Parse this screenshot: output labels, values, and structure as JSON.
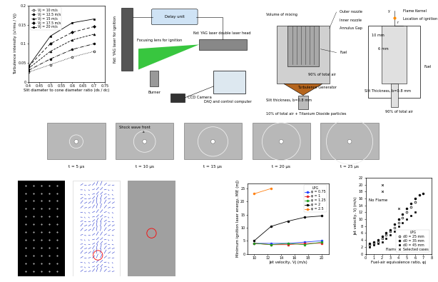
{
  "chart_data": [
    {
      "type": "line",
      "x_label": "Slit diameter to cone diameter ratio (ds / dc)",
      "y_label": "Turbulence intensity (u'rms / Vj)",
      "x": [
        0.4,
        0.5,
        0.6,
        0.7
      ],
      "series": [
        {
          "name": "Vj = 10 m/s",
          "color": "#000000",
          "marker": "open_circle",
          "line_style": "dotted",
          "values": [
            0.025,
            0.045,
            0.065,
            0.08
          ]
        },
        {
          "name": "Vj = 12.5 m/s",
          "color": "#000000",
          "marker": "circle",
          "line_style": "dashdot",
          "values": [
            0.03,
            0.06,
            0.085,
            0.1
          ]
        },
        {
          "name": "Vj = 15 m/s",
          "color": "#000000",
          "marker": "triangle",
          "line_style": "dashed",
          "values": [
            0.035,
            0.08,
            0.11,
            0.125
          ]
        },
        {
          "name": "Vj = 17.5 m/s",
          "color": "#000000",
          "marker": "diamond",
          "line_style": "loosely_dashed",
          "values": [
            0.04,
            0.1,
            0.13,
            0.145
          ]
        },
        {
          "name": "Vj = 20 m/s",
          "color": "#000000",
          "marker": "square",
          "line_style": "solid",
          "values": [
            0.04,
            0.12,
            0.155,
            0.165
          ]
        }
      ],
      "xlim": [
        0.4,
        0.75
      ],
      "ylim": [
        0,
        0.2
      ],
      "xticks": [
        0.4,
        0.45,
        0.5,
        0.55,
        0.6,
        0.65,
        0.7,
        0.75
      ],
      "yticks": [
        0,
        0.05,
        0.1,
        0.15,
        0.2
      ],
      "legend": "upper left"
    },
    {
      "type": "line",
      "x_label": "Jet velocity, Vj (m/s)",
      "y_label": "Minimum ignition laser energy, MIE (mJ)",
      "legend_title": "LPG",
      "x": [
        10,
        12.5,
        15,
        17.5,
        20
      ],
      "series": [
        {
          "name": "φ = 0.75",
          "color": "#1f3fff",
          "marker": "circle",
          "line_style": "solid",
          "values": [
            4,
            4,
            4,
            4.5,
            5
          ]
        },
        {
          "name": "φ = 1",
          "color": "#e02020",
          "marker": "circle",
          "line_style": "solid",
          "values": [
            4,
            3.5,
            3.5,
            4,
            4
          ]
        },
        {
          "name": "φ = 1.25",
          "color": "#20a020",
          "marker": "circle",
          "line_style": "solid",
          "values": [
            4,
            3.5,
            4,
            3.5,
            4.5
          ]
        },
        {
          "name": "φ = 2",
          "color": "#000000",
          "marker": "circle",
          "line_style": "solid",
          "values": [
            5,
            10.5,
            12.5,
            14,
            14.5
          ]
        },
        {
          "name": "φ = 2.5",
          "color": "#ff7f0e",
          "marker": "circle",
          "line_style": "solid",
          "values": [
            23,
            25,
            null,
            null,
            null
          ]
        }
      ],
      "xlim": [
        9,
        21
      ],
      "ylim": [
        0,
        27
      ],
      "xticks": [
        10,
        12,
        14,
        16,
        18,
        20
      ],
      "yticks": [
        0,
        5,
        10,
        15,
        20,
        25
      ],
      "legend": "upper right"
    },
    {
      "type": "scatter",
      "x_label": "Fuel-air equivalence ratio, φj",
      "y_label": "Jet velocity, Vj (m/s)",
      "legend_title": "LPG",
      "annotations": [
        "No Flame",
        "Flame"
      ],
      "series": [
        {
          "name": "d0 = 25 mm",
          "color": "#000000",
          "marker": "open_circle",
          "x": [
            0.5,
            1,
            1.5,
            2,
            2.5,
            3,
            3.5,
            4,
            4.5,
            5,
            5.5,
            6
          ],
          "values": [
            2.5,
            3,
            3.5,
            4.5,
            5.5,
            6.5,
            7.5,
            9,
            10.5,
            12,
            13.5,
            15
          ]
        },
        {
          "name": "d0 = 35 mm",
          "color": "#000000",
          "marker": "circle",
          "x": [
            0.5,
            1,
            1.5,
            2,
            2.5,
            3,
            3.5,
            4,
            4.5,
            5,
            5.5,
            6,
            6.5,
            7
          ],
          "values": [
            3,
            3.5,
            4,
            5,
            6,
            7,
            8.5,
            10,
            11.5,
            13,
            14.5,
            16,
            17,
            17.5
          ]
        },
        {
          "name": "d0 = 45 mm",
          "color": "#000000",
          "marker": "square",
          "x": [
            0.5,
            1,
            1.5,
            2,
            2.5,
            3,
            3.5,
            4,
            4.5,
            5,
            5.5,
            6
          ],
          "values": [
            2,
            2.5,
            3,
            3.5,
            4.5,
            5.5,
            6.5,
            8,
            9,
            10,
            11,
            12
          ]
        },
        {
          "name": "Selected cases",
          "color": "#000000",
          "marker": "x",
          "x": [
            2,
            2,
            4,
            4,
            6
          ],
          "values": [
            20,
            18,
            13,
            10,
            16
          ]
        }
      ],
      "xlim": [
        0,
        8
      ],
      "ylim": [
        0,
        22
      ],
      "xticks": [
        0,
        1,
        2,
        3,
        4,
        5,
        6,
        7,
        8
      ],
      "yticks": [
        0,
        2,
        4,
        6,
        8,
        10,
        12,
        14,
        16,
        18,
        20,
        22
      ],
      "legend": "lower right"
    }
  ],
  "setup_diagram": {
    "labels": {
      "delay_unit": "Delay unit",
      "ignition_laser": "Nd: YAG laser for ignition",
      "double_laser": "Nd: YAG laser double laser head",
      "lens": "Focusing lens for ignition",
      "burner": "Burner",
      "camera": "CCD Camera",
      "computer": "DAQ and control computer"
    }
  },
  "burner_schematic": {
    "labels": {
      "mixing": "Volume of mixing",
      "outer": "Outer nozzle",
      "inner": "Inner nozzle",
      "annulus": "Annulus Gap",
      "fuel_left": "Fuel",
      "air_left": "90% of total air",
      "generator": "Turbulence Generator",
      "slit_left": "Slit thickness, b=0.8 mm",
      "seed": "10% of total air + Titanium Dioxide particles",
      "kernel": "Flame Kernel",
      "ignition": "Location of ignition",
      "d10": "10 mm",
      "d6": "6 mm",
      "fuel_right": "Fuel",
      "slit_right": "Slit Thickness, b=0.8 mm",
      "air_right": "90% of total air",
      "y_axis": "y",
      "r_axis": "r"
    }
  },
  "schlieren_images": {
    "annotation": "Shock wave front",
    "time_labels": [
      "t = 5 μs",
      "t = 10 μs",
      "t = 15 μs",
      "t = 20 μs",
      "t = 25 μs"
    ]
  }
}
